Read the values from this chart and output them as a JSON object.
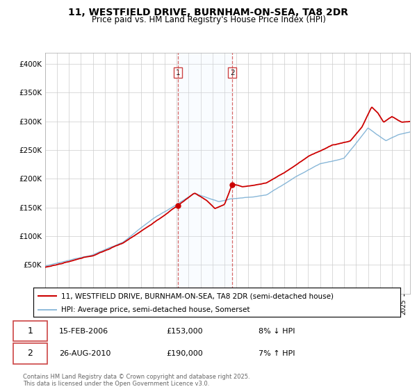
{
  "title": "11, WESTFIELD DRIVE, BURNHAM-ON-SEA, TA8 2DR",
  "subtitle": "Price paid vs. HM Land Registry's House Price Index (HPI)",
  "legend1": "11, WESTFIELD DRIVE, BURNHAM-ON-SEA, TA8 2DR (semi-detached house)",
  "legend2": "HPI: Average price, semi-detached house, Somerset",
  "footer": "Contains HM Land Registry data © Crown copyright and database right 2025.\nThis data is licensed under the Open Government Licence v3.0.",
  "marker1_date": "15-FEB-2006",
  "marker1_price": 153000,
  "marker1_hpi": "8% ↓ HPI",
  "marker2_date": "26-AUG-2010",
  "marker2_price": 190000,
  "marker2_hpi": "7% ↑ HPI",
  "red_color": "#cc0000",
  "blue_color": "#7bafd4",
  "shade_color": "#ddeeff",
  "marker_vline_color": "#cc4444",
  "ylim_max": 420000,
  "ylim_min": 0,
  "background_color": "#ffffff",
  "grid_color": "#cccccc"
}
